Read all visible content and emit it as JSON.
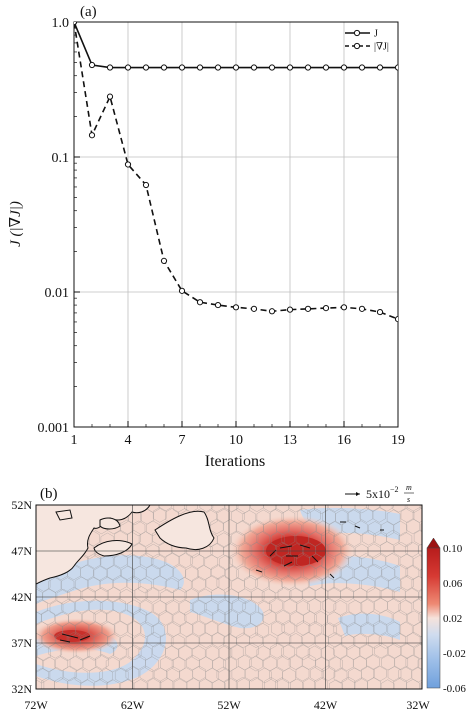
{
  "chart_data": [
    {
      "type": "line",
      "panel_label": "(a)",
      "xlabel": "Iterations",
      "ylabel": "J (|∇J|)",
      "xlim": [
        1,
        19
      ],
      "ylim": [
        0.001,
        1.0
      ],
      "yscale": "log",
      "xticks": [
        "1",
        "4",
        "7",
        "10",
        "13",
        "16",
        "19"
      ],
      "yticks": [
        "0.001",
        "0.01",
        "0.1",
        "1.0"
      ],
      "grid": true,
      "legend_position": "top-right",
      "x": [
        1,
        2,
        3,
        4,
        5,
        6,
        7,
        8,
        9,
        10,
        11,
        12,
        13,
        14,
        15,
        16,
        17,
        18,
        19
      ],
      "series": [
        {
          "name": "J",
          "style": "solid",
          "values": [
            1.0,
            0.48,
            0.46,
            0.46,
            0.46,
            0.46,
            0.46,
            0.46,
            0.46,
            0.46,
            0.46,
            0.46,
            0.46,
            0.46,
            0.46,
            0.46,
            0.46,
            0.46,
            0.46
          ]
        },
        {
          "name": "|∇J|",
          "style": "dashed",
          "values": [
            1.0,
            0.145,
            0.28,
            0.088,
            0.062,
            0.017,
            0.0102,
            0.0084,
            0.008,
            0.0077,
            0.0075,
            0.0072,
            0.0074,
            0.0075,
            0.0076,
            0.0077,
            0.0075,
            0.0071,
            0.0063
          ]
        }
      ]
    },
    {
      "type": "heatmap",
      "panel_label": "(b)",
      "xticks": [
        "72W",
        "62W",
        "52W",
        "42W",
        "32W"
      ],
      "yticks": [
        "52N",
        "47N",
        "42N",
        "37N",
        "32N"
      ],
      "xlim": [
        -72,
        -32
      ],
      "ylim": [
        32,
        52
      ],
      "grid": true,
      "vector_reference": "5x10⁻² m/s",
      "vector_ref_prefix": "5x10",
      "vector_ref_exp": "−2",
      "vector_ref_unit_num": "m",
      "vector_ref_unit_den": "s",
      "colorbar": {
        "levels": [
          "0.10",
          "0.06",
          "0.02",
          "-0.02",
          "-0.06"
        ],
        "colors": [
          "#b71c1c",
          "#d63a33",
          "#ee8a74",
          "#f2c3b3",
          "#f6e2db",
          "#cfdcef",
          "#9ebfe8",
          "#6fa0dd"
        ]
      },
      "features": [
        {
          "label": "positive anomaly",
          "lon": -43.5,
          "lat": 46.8,
          "peak": 0.1
        },
        {
          "label": "positive anomaly",
          "lon": -65.5,
          "lat": 38.0,
          "peak": 0.08
        }
      ]
    }
  ]
}
